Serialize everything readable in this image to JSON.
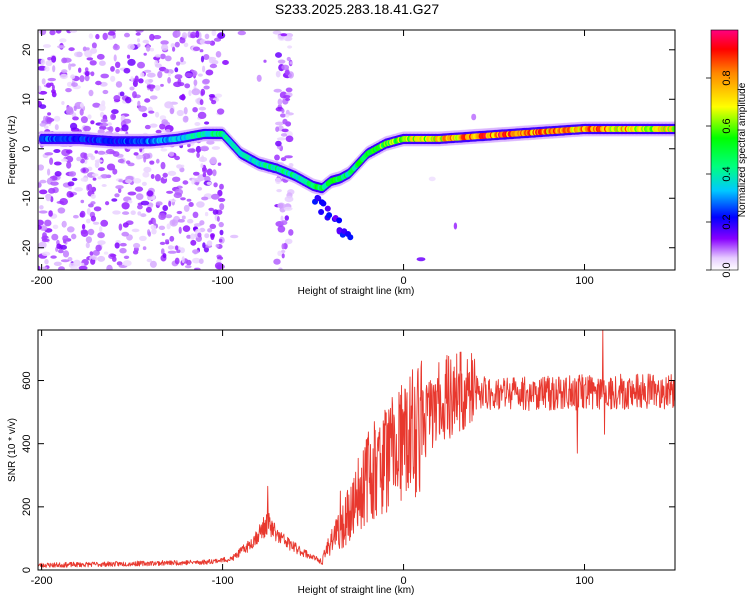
{
  "title": "S233.2025.283.18.41.G27",
  "chart_data": [
    {
      "type": "heatmap",
      "name": "spectrogram",
      "xlabel": "Height of straight line (km)",
      "ylabel": "Frequency (Hz)",
      "xlim": [
        -202,
        150
      ],
      "ylim": [
        -24.5,
        24
      ],
      "xticks": [
        -200,
        -100,
        0,
        100
      ],
      "yticks": [
        -20,
        -10,
        0,
        10,
        20
      ],
      "colorbar": {
        "label": "Normalized spectral amplitude",
        "range": [
          0,
          1
        ],
        "ticks": [
          "0.0",
          "0.2",
          "0.4",
          "0.6",
          "0.8"
        ],
        "tick_values": [
          0.0,
          0.2,
          0.4,
          0.6,
          0.8
        ]
      },
      "ridge": {
        "description": "dominant frequency vs height",
        "x": [
          -200,
          -180,
          -160,
          -140,
          -125,
          -110,
          -100,
          -90,
          -80,
          -70,
          -60,
          -50,
          -45,
          -40,
          -35,
          -30,
          -20,
          -10,
          0,
          10,
          20,
          40,
          60,
          80,
          100,
          120,
          150
        ],
        "y": [
          2,
          2,
          1.5,
          1.5,
          2,
          3,
          3,
          -1,
          -3,
          -4,
          -5.5,
          -7.5,
          -8,
          -6.5,
          -6,
          -5,
          -1,
          1,
          2,
          2,
          2,
          2.5,
          3,
          3.5,
          4,
          4,
          4
        ],
        "amplitude": [
          0.3,
          0.25,
          0.25,
          0.3,
          0.35,
          0.45,
          0.45,
          0.4,
          0.4,
          0.45,
          0.45,
          0.5,
          0.5,
          0.55,
          0.5,
          0.45,
          0.55,
          0.6,
          0.65,
          0.7,
          0.75,
          0.9,
          0.9,
          0.85,
          0.85,
          0.8,
          0.7
        ]
      },
      "branch": {
        "x": [
          -50,
          -30
        ],
        "y": [
          -10,
          -18
        ],
        "amplitude": 0.2
      }
    },
    {
      "type": "line",
      "name": "snr",
      "xlabel": "Height of straight line (km)",
      "ylabel": "SNR (10 * v/v)",
      "xlim": [
        -202,
        150
      ],
      "ylim": [
        0,
        760
      ],
      "xticks": [
        -200,
        -100,
        0,
        100
      ],
      "yticks": [
        0,
        200,
        400,
        600
      ],
      "color": "#e8382e",
      "envelope": {
        "x": [
          -202,
          -150,
          -110,
          -95,
          -85,
          -75,
          -70,
          -65,
          -60,
          -50,
          -45,
          -40,
          -35,
          -30,
          -25,
          -20,
          -15,
          -10,
          -5,
          0,
          5,
          10,
          15,
          20,
          25,
          30,
          40,
          50,
          60,
          70,
          80,
          90,
          100,
          110,
          120,
          130,
          140,
          150
        ],
        "y": [
          15,
          20,
          25,
          35,
          80,
          150,
          110,
          90,
          70,
          40,
          25,
          100,
          120,
          180,
          240,
          300,
          330,
          360,
          380,
          400,
          430,
          460,
          500,
          530,
          550,
          560,
          560,
          560,
          560,
          560,
          560,
          560,
          565,
          565,
          565,
          565,
          565,
          565
        ]
      },
      "spikes": [
        {
          "x": 110,
          "y": 760
        },
        {
          "x": 96,
          "y": 370
        },
        {
          "x": 111,
          "y": 430
        },
        {
          "x": -75,
          "y": 265
        },
        {
          "x": -35,
          "y": 250
        }
      ]
    }
  ]
}
